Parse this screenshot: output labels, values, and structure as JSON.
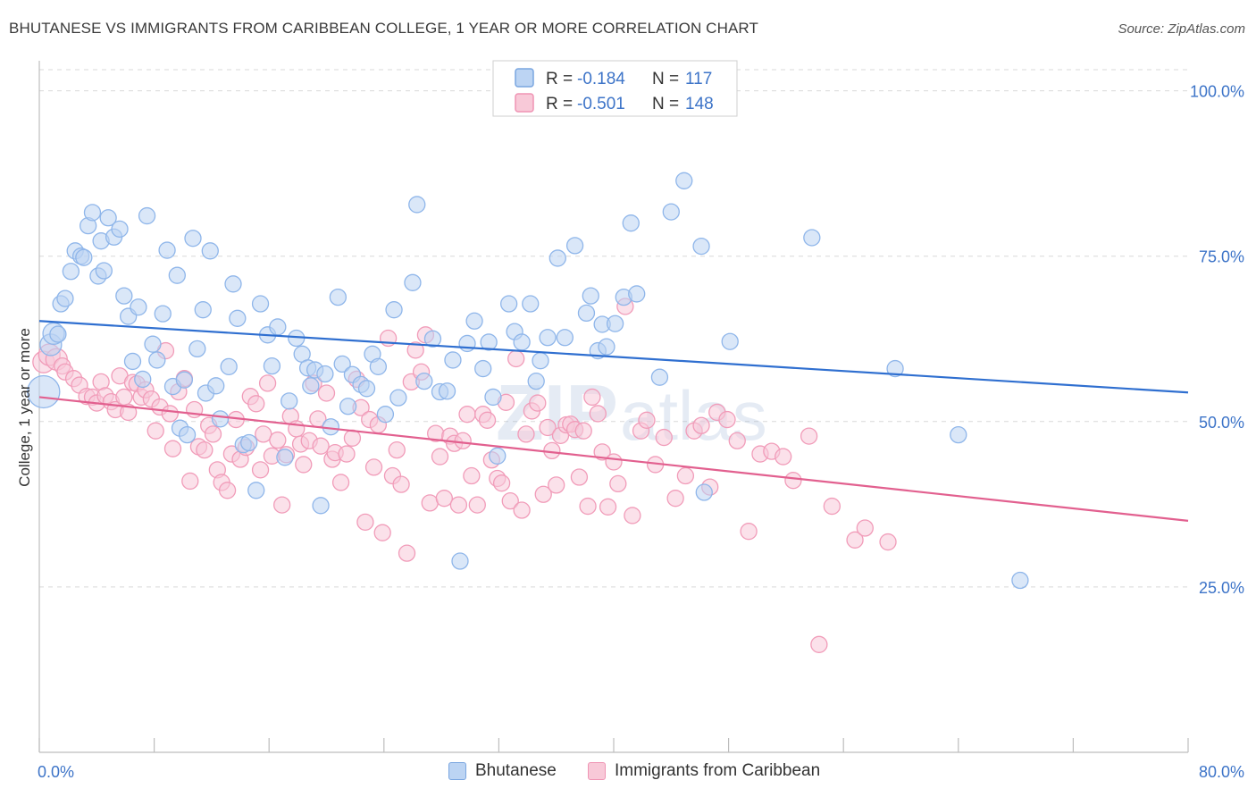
{
  "title": "BHUTANESE VS IMMIGRANTS FROM CARIBBEAN COLLEGE, 1 YEAR OR MORE CORRELATION CHART",
  "source": "Source: ZipAtlas.com",
  "watermark": {
    "zip": "ZIP",
    "atlas": "atlas"
  },
  "colors": {
    "blue": "#8fb6ea",
    "blue_fill": "#bcd4f3",
    "blue_line": "#2f6fd0",
    "pink": "#f19cb9",
    "pink_fill": "#f8c9d8",
    "pink_line": "#e2608f",
    "tick_label": "#3d74c8",
    "grid": "#d9d9d9"
  },
  "legend_stats": [
    {
      "r_label": "R =",
      "r_value": "-0.184",
      "n_label": "N =",
      "n_value": "117",
      "color": "blue"
    },
    {
      "r_label": "R =",
      "r_value": "-0.501",
      "n_label": "N =",
      "n_value": "148",
      "color": "pink"
    }
  ],
  "chart_data": {
    "type": "scatter",
    "xlabel": "",
    "ylabel": "College, 1 year or more",
    "xlim": [
      0,
      80
    ],
    "ylim": [
      0,
      104
    ],
    "x_tick_labels": [
      "0.0%",
      "80.0%"
    ],
    "y_ticks": [
      25,
      50,
      75,
      100
    ],
    "y_tick_labels": [
      "25.0%",
      "50.0%",
      "75.0%",
      "100.0%"
    ],
    "grid": "horizontal dashed",
    "legend_position": "top-center",
    "series": [
      {
        "name": "Bhutanese",
        "color": "blue",
        "trend": {
          "x": [
            0,
            80
          ],
          "y": [
            65.2,
            54.4
          ]
        },
        "points": [
          [
            0.3,
            54.5
          ],
          [
            0.8,
            61.6
          ],
          [
            1.0,
            63.3
          ],
          [
            1.3,
            63.2
          ],
          [
            1.5,
            67.8
          ],
          [
            1.8,
            68.6
          ],
          [
            2.2,
            72.7
          ],
          [
            2.5,
            75.8
          ],
          [
            2.9,
            75.0
          ],
          [
            3.1,
            74.8
          ],
          [
            3.4,
            79.6
          ],
          [
            3.7,
            81.6
          ],
          [
            4.1,
            72.0
          ],
          [
            4.3,
            77.3
          ],
          [
            4.5,
            72.8
          ],
          [
            4.8,
            80.8
          ],
          [
            5.2,
            77.9
          ],
          [
            5.6,
            79.1
          ],
          [
            5.9,
            69.0
          ],
          [
            6.2,
            65.9
          ],
          [
            6.5,
            59.1
          ],
          [
            6.9,
            67.3
          ],
          [
            7.2,
            56.4
          ],
          [
            7.5,
            81.1
          ],
          [
            7.9,
            61.7
          ],
          [
            8.2,
            59.3
          ],
          [
            8.6,
            66.3
          ],
          [
            8.9,
            75.9
          ],
          [
            9.3,
            55.3
          ],
          [
            9.6,
            72.1
          ],
          [
            9.8,
            49.0
          ],
          [
            10.1,
            56.3
          ],
          [
            10.3,
            48.0
          ],
          [
            10.7,
            77.7
          ],
          [
            11.0,
            61.0
          ],
          [
            11.4,
            66.9
          ],
          [
            11.6,
            54.3
          ],
          [
            11.9,
            75.8
          ],
          [
            12.3,
            55.4
          ],
          [
            12.6,
            50.4
          ],
          [
            13.2,
            58.3
          ],
          [
            13.5,
            70.8
          ],
          [
            13.8,
            65.6
          ],
          [
            14.2,
            46.5
          ],
          [
            14.6,
            46.8
          ],
          [
            15.1,
            39.6
          ],
          [
            15.4,
            67.8
          ],
          [
            15.9,
            63.1
          ],
          [
            16.2,
            58.4
          ],
          [
            16.6,
            64.3
          ],
          [
            17.1,
            44.6
          ],
          [
            17.4,
            53.1
          ],
          [
            17.9,
            62.6
          ],
          [
            18.3,
            60.2
          ],
          [
            18.7,
            58.1
          ],
          [
            18.9,
            55.4
          ],
          [
            19.2,
            57.8
          ],
          [
            19.6,
            37.3
          ],
          [
            19.9,
            57.2
          ],
          [
            20.3,
            49.2
          ],
          [
            20.8,
            68.8
          ],
          [
            21.1,
            58.7
          ],
          [
            21.5,
            52.3
          ],
          [
            21.8,
            57.1
          ],
          [
            22.4,
            55.6
          ],
          [
            22.8,
            55.0
          ],
          [
            23.2,
            60.2
          ],
          [
            23.6,
            58.3
          ],
          [
            24.1,
            51.1
          ],
          [
            24.7,
            66.9
          ],
          [
            25.0,
            53.6
          ],
          [
            26.0,
            71.0
          ],
          [
            26.3,
            82.8
          ],
          [
            26.8,
            56.1
          ],
          [
            27.4,
            62.5
          ],
          [
            27.9,
            54.5
          ],
          [
            28.4,
            54.6
          ],
          [
            28.8,
            59.3
          ],
          [
            29.3,
            28.9
          ],
          [
            29.8,
            61.8
          ],
          [
            30.3,
            65.2
          ],
          [
            30.9,
            58.0
          ],
          [
            31.3,
            62.0
          ],
          [
            31.6,
            53.7
          ],
          [
            31.9,
            44.8
          ],
          [
            32.7,
            67.8
          ],
          [
            33.1,
            63.6
          ],
          [
            33.6,
            62.0
          ],
          [
            34.2,
            67.8
          ],
          [
            34.6,
            56.1
          ],
          [
            34.9,
            59.2
          ],
          [
            35.4,
            62.7
          ],
          [
            36.1,
            74.7
          ],
          [
            36.6,
            62.7
          ],
          [
            37.3,
            76.6
          ],
          [
            38.1,
            66.4
          ],
          [
            38.4,
            69.0
          ],
          [
            38.9,
            60.7
          ],
          [
            39.2,
            64.7
          ],
          [
            39.5,
            61.3
          ],
          [
            40.1,
            64.8
          ],
          [
            40.7,
            68.8
          ],
          [
            41.2,
            80.0
          ],
          [
            41.6,
            69.3
          ],
          [
            43.2,
            56.7
          ],
          [
            44.0,
            81.7
          ],
          [
            44.9,
            86.4
          ],
          [
            46.1,
            76.5
          ],
          [
            46.3,
            39.3
          ],
          [
            48.1,
            62.1
          ],
          [
            53.8,
            77.8
          ],
          [
            59.6,
            58.0
          ],
          [
            64.0,
            48.0
          ],
          [
            68.3,
            26.0
          ]
        ]
      },
      {
        "name": "Immigrants from Caribbean",
        "color": "pink",
        "trend": {
          "x": [
            0,
            80
          ],
          "y": [
            53.7,
            35.0
          ]
        },
        "points": [
          [
            0.3,
            59.0
          ],
          [
            0.7,
            60.1
          ],
          [
            1.2,
            59.4
          ],
          [
            1.6,
            58.4
          ],
          [
            1.8,
            57.5
          ],
          [
            2.4,
            56.5
          ],
          [
            2.8,
            55.5
          ],
          [
            3.3,
            53.8
          ],
          [
            3.7,
            53.7
          ],
          [
            4.0,
            52.8
          ],
          [
            4.3,
            56.0
          ],
          [
            4.6,
            53.9
          ],
          [
            5.0,
            53.0
          ],
          [
            5.3,
            51.8
          ],
          [
            5.6,
            56.9
          ],
          [
            5.9,
            53.7
          ],
          [
            6.2,
            51.4
          ],
          [
            6.5,
            55.9
          ],
          [
            6.8,
            55.7
          ],
          [
            7.1,
            53.7
          ],
          [
            7.4,
            54.8
          ],
          [
            7.8,
            53.4
          ],
          [
            8.1,
            48.6
          ],
          [
            8.4,
            52.2
          ],
          [
            8.8,
            60.7
          ],
          [
            9.1,
            51.2
          ],
          [
            9.3,
            45.9
          ],
          [
            9.7,
            54.5
          ],
          [
            10.1,
            56.5
          ],
          [
            10.5,
            41.0
          ],
          [
            10.8,
            51.8
          ],
          [
            11.1,
            46.2
          ],
          [
            11.5,
            45.7
          ],
          [
            11.8,
            49.4
          ],
          [
            12.1,
            48.1
          ],
          [
            12.4,
            42.7
          ],
          [
            12.7,
            40.8
          ],
          [
            13.1,
            39.6
          ],
          [
            13.4,
            45.1
          ],
          [
            13.7,
            50.3
          ],
          [
            14.0,
            44.3
          ],
          [
            14.4,
            46.1
          ],
          [
            14.7,
            53.8
          ],
          [
            15.1,
            52.7
          ],
          [
            15.4,
            42.7
          ],
          [
            15.6,
            48.1
          ],
          [
            15.9,
            55.8
          ],
          [
            16.2,
            44.8
          ],
          [
            16.6,
            47.2
          ],
          [
            16.9,
            37.4
          ],
          [
            17.2,
            45.0
          ],
          [
            17.5,
            50.8
          ],
          [
            17.9,
            48.9
          ],
          [
            18.2,
            46.6
          ],
          [
            18.4,
            43.5
          ],
          [
            18.8,
            47.1
          ],
          [
            19.1,
            55.8
          ],
          [
            19.4,
            50.4
          ],
          [
            19.6,
            46.3
          ],
          [
            20.0,
            54.3
          ],
          [
            20.4,
            44.3
          ],
          [
            20.6,
            45.3
          ],
          [
            21.0,
            40.8
          ],
          [
            21.4,
            45.1
          ],
          [
            21.8,
            47.5
          ],
          [
            22.1,
            56.4
          ],
          [
            22.4,
            52.1
          ],
          [
            22.7,
            34.8
          ],
          [
            23.0,
            50.3
          ],
          [
            23.3,
            43.1
          ],
          [
            23.6,
            49.5
          ],
          [
            23.9,
            33.2
          ],
          [
            24.3,
            62.6
          ],
          [
            24.6,
            41.8
          ],
          [
            24.9,
            45.7
          ],
          [
            25.2,
            40.5
          ],
          [
            25.6,
            30.1
          ],
          [
            25.9,
            56.0
          ],
          [
            26.2,
            60.8
          ],
          [
            26.6,
            57.5
          ],
          [
            26.9,
            63.1
          ],
          [
            27.2,
            37.7
          ],
          [
            27.6,
            48.2
          ],
          [
            27.9,
            44.7
          ],
          [
            28.2,
            38.4
          ],
          [
            28.6,
            47.8
          ],
          [
            28.9,
            46.7
          ],
          [
            29.2,
            37.4
          ],
          [
            29.5,
            47.1
          ],
          [
            29.8,
            51.1
          ],
          [
            30.1,
            41.8
          ],
          [
            30.5,
            37.4
          ],
          [
            30.9,
            51.1
          ],
          [
            31.2,
            50.2
          ],
          [
            31.5,
            44.2
          ],
          [
            31.9,
            41.4
          ],
          [
            32.2,
            40.7
          ],
          [
            32.5,
            52.9
          ],
          [
            32.8,
            38.0
          ],
          [
            33.2,
            59.5
          ],
          [
            33.6,
            36.6
          ],
          [
            33.9,
            48.1
          ],
          [
            34.3,
            51.6
          ],
          [
            34.7,
            52.8
          ],
          [
            35.1,
            39.0
          ],
          [
            35.4,
            49.1
          ],
          [
            35.7,
            45.6
          ],
          [
            36.0,
            40.4
          ],
          [
            36.3,
            47.9
          ],
          [
            36.7,
            49.5
          ],
          [
            37.0,
            49.6
          ],
          [
            37.3,
            48.8
          ],
          [
            37.6,
            41.6
          ],
          [
            37.9,
            48.6
          ],
          [
            38.2,
            37.2
          ],
          [
            38.5,
            53.7
          ],
          [
            38.9,
            51.2
          ],
          [
            39.2,
            45.4
          ],
          [
            39.6,
            37.1
          ],
          [
            40.0,
            43.9
          ],
          [
            40.3,
            40.6
          ],
          [
            40.8,
            67.4
          ],
          [
            41.3,
            35.8
          ],
          [
            41.9,
            48.6
          ],
          [
            42.3,
            50.2
          ],
          [
            42.9,
            43.5
          ],
          [
            43.5,
            47.6
          ],
          [
            44.3,
            38.4
          ],
          [
            45.0,
            41.8
          ],
          [
            45.6,
            48.6
          ],
          [
            46.1,
            49.4
          ],
          [
            46.7,
            40.1
          ],
          [
            47.2,
            51.4
          ],
          [
            47.9,
            50.3
          ],
          [
            48.6,
            47.1
          ],
          [
            49.4,
            33.4
          ],
          [
            50.2,
            45.1
          ],
          [
            51.0,
            45.5
          ],
          [
            51.8,
            44.7
          ],
          [
            52.5,
            41.1
          ],
          [
            53.6,
            47.8
          ],
          [
            54.3,
            16.3
          ],
          [
            55.2,
            37.2
          ],
          [
            56.8,
            32.1
          ],
          [
            57.5,
            33.9
          ],
          [
            59.1,
            31.8
          ]
        ]
      }
    ]
  }
}
